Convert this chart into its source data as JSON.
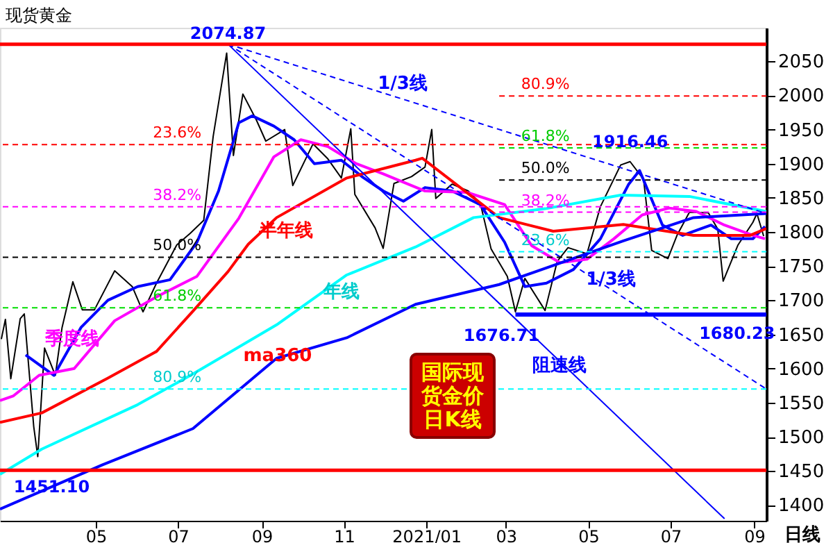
{
  "chart_data": {
    "type": "line",
    "title": "现货黄金",
    "grid": false,
    "xlim": [
      "2020-02-20",
      "2021-09-10"
    ],
    "xticks": [
      {
        "value": "2020-05-01",
        "label": "05"
      },
      {
        "value": "2020-07-01",
        "label": "07"
      },
      {
        "value": "2020-09-01",
        "label": "09"
      },
      {
        "value": "2020-11-01",
        "label": "11"
      },
      {
        "value": "2021-01-01",
        "label": "2021/01"
      },
      {
        "value": "2021-03-01",
        "label": "03"
      },
      {
        "value": "2021-05-01",
        "label": "05"
      },
      {
        "value": "2021-07-01",
        "label": "07"
      },
      {
        "value": "2021-09-01",
        "label": "09"
      }
    ],
    "ylim": [
      1377,
      2099
    ],
    "yticks": [
      1400,
      1450,
      1500,
      1550,
      1600,
      1650,
      1700,
      1750,
      1800,
      1850,
      1900,
      1950,
      2000,
      2050
    ],
    "series": [
      {
        "type": "line",
        "color": "#000000",
        "x": [
          "2020-02-21",
          "2020-02-24",
          "2020-02-28",
          "2020-03-06",
          "2020-03-09",
          "2020-03-16",
          "2020-03-19",
          "2020-03-24",
          "2020-04-01",
          "2020-04-06",
          "2020-04-14",
          "2020-04-21",
          "2020-04-30",
          "2020-05-15",
          "2020-05-28",
          "2020-06-05",
          "2020-06-15",
          "2020-06-30",
          "2020-07-10",
          "2020-07-20",
          "2020-07-27",
          "2020-08-06",
          "2020-08-11",
          "2020-08-18",
          "2020-08-28",
          "2020-09-04",
          "2020-09-18",
          "2020-09-24",
          "2020-10-09",
          "2020-10-20",
          "2020-10-30",
          "2020-11-06",
          "2020-11-09",
          "2020-11-24",
          "2020-11-30",
          "2020-12-08",
          "2020-12-21",
          "2020-12-31",
          "2021-01-05",
          "2021-01-08",
          "2021-01-20",
          "2021-02-01",
          "2021-02-10",
          "2021-02-18",
          "2021-03-02",
          "2021-03-08",
          "2021-03-15",
          "2021-03-30",
          "2021-04-08",
          "2021-04-16",
          "2021-04-30",
          "2021-05-10",
          "2021-05-25",
          "2021-06-01",
          "2021-06-11",
          "2021-06-17",
          "2021-06-29",
          "2021-07-06",
          "2021-07-15",
          "2021-07-29",
          "2021-08-05",
          "2021-08-09",
          "2021-08-20",
          "2021-08-31",
          "2021-09-03",
          "2021-09-08"
        ],
        "values": [
          1643,
          1672,
          1585,
          1673,
          1680,
          1515,
          1471,
          1630,
          1590,
          1660,
          1727,
          1686,
          1686,
          1743,
          1720,
          1683,
          1725,
          1781,
          1798,
          1817,
          1940,
          2062,
          1912,
          2002,
          1964,
          1933,
          1950,
          1868,
          1929,
          1907,
          1879,
          1951,
          1855,
          1806,
          1776,
          1871,
          1881,
          1895,
          1950,
          1849,
          1870,
          1860,
          1842,
          1775,
          1735,
          1683,
          1732,
          1685,
          1757,
          1777,
          1768,
          1837,
          1898,
          1903,
          1877,
          1773,
          1761,
          1796,
          1829,
          1828,
          1804,
          1728,
          1781,
          1814,
          1827,
          1794
        ]
      },
      {
        "type": "line",
        "color": "#0000ff",
        "x": [
          "2020-03-10",
          "2020-03-31",
          "2020-04-20",
          "2020-05-10",
          "2020-06-01",
          "2020-06-25",
          "2020-07-15",
          "2020-07-31",
          "2020-08-15",
          "2020-08-25",
          "2020-09-10",
          "2020-09-25",
          "2020-10-10",
          "2020-10-30",
          "2020-11-15",
          "2020-11-30",
          "2020-12-15",
          "2020-12-31",
          "2021-01-20",
          "2021-02-10",
          "2021-02-28",
          "2021-03-15",
          "2021-03-31",
          "2021-04-20",
          "2021-05-10",
          "2021-05-31",
          "2021-06-08",
          "2021-06-25",
          "2021-07-10",
          "2021-07-31",
          "2021-08-15",
          "2021-08-31",
          "2021-09-09"
        ],
        "values": [
          1620,
          1590,
          1660,
          1700,
          1720,
          1730,
          1785,
          1860,
          1960,
          1970,
          1955,
          1935,
          1900,
          1905,
          1880,
          1860,
          1845,
          1865,
          1860,
          1840,
          1785,
          1720,
          1725,
          1745,
          1790,
          1870,
          1890,
          1810,
          1795,
          1810,
          1790,
          1790,
          1808
        ]
      },
      {
        "type": "line",
        "color": "#ff00ff",
        "x": [
          "2020-02-20",
          "2020-03-01",
          "2020-03-20",
          "2020-04-15",
          "2020-05-15",
          "2020-06-15",
          "2020-07-15",
          "2020-08-15",
          "2020-09-10",
          "2020-09-30",
          "2020-10-20",
          "2020-11-10",
          "2020-11-30",
          "2020-12-31",
          "2021-01-31",
          "2021-02-28",
          "2021-03-20",
          "2021-04-10",
          "2021-04-30",
          "2021-05-20",
          "2021-06-10",
          "2021-06-30",
          "2021-07-20",
          "2021-08-10",
          "2021-08-31",
          "2021-09-09"
        ],
        "values": [
          1553,
          1560,
          1590,
          1600,
          1670,
          1705,
          1735,
          1820,
          1910,
          1935,
          1925,
          1900,
          1885,
          1860,
          1858,
          1840,
          1780,
          1755,
          1760,
          1790,
          1825,
          1835,
          1830,
          1810,
          1795,
          1790
        ]
      },
      {
        "type": "line",
        "color": "#ff0000",
        "x": [
          "2020-02-20",
          "2020-03-22",
          "2020-05-10",
          "2020-06-15",
          "2020-07-12",
          "2020-08-07",
          "2020-08-22",
          "2020-09-12",
          "2020-11-03",
          "2020-12-24",
          "2020-12-29",
          "2021-02-24",
          "2021-04-05",
          "2021-05-27",
          "2021-07-18",
          "2021-08-29",
          "2021-09-10"
        ],
        "values": [
          1521,
          1535,
          1586,
          1625,
          1684,
          1742,
          1782,
          1821,
          1879,
          1905,
          1908,
          1821,
          1801,
          1811,
          1795,
          1795,
          1805
        ]
      },
      {
        "type": "line",
        "color": "#00ffff",
        "x": [
          "2020-02-20",
          "2020-03-22",
          "2020-06-01",
          "2020-07-12",
          "2020-09-12",
          "2020-11-03",
          "2020-12-24",
          "2021-02-05",
          "2021-03-30",
          "2021-05-25",
          "2021-07-15",
          "2021-09-10"
        ],
        "values": [
          1445,
          1482,
          1547,
          1592,
          1664,
          1737,
          1778,
          1821,
          1834,
          1854,
          1852,
          1830
        ]
      },
      {
        "type": "line",
        "color": "#0000ff",
        "x": [
          "2020-02-20",
          "2020-05-06",
          "2020-07-12",
          "2020-09-12",
          "2020-11-03",
          "2020-12-24",
          "2021-02-24",
          "2021-05-27",
          "2021-07-18",
          "2021-09-10"
        ],
        "values": [
          1394,
          1459,
          1512,
          1615,
          1645,
          1694,
          1723,
          1787,
          1821,
          1827
        ]
      },
      {
        "type": "line",
        "color": "#0000ff",
        "x": [
          "2021-03-08",
          "2021-09-10"
        ],
        "values": [
          1679,
          1679
        ]
      },
      {
        "color": "#0000ff",
        "x": [
          "2020-08-07",
          "2021-08-10"
        ],
        "values": [
          2075,
          1380
        ]
      },
      {
        "color": "#0000ff",
        "line_style": "dashed",
        "x": [
          "2020-08-07",
          "2021-09-10"
        ],
        "values": [
          2075,
          1827
        ]
      },
      {
        "color": "#0000ff",
        "line_style": "dashed",
        "x": [
          "2020-08-07",
          "2021-09-10"
        ],
        "values": [
          2075,
          1570
        ]
      },
      {
        "color": "#ff0000",
        "line_style": "dashed",
        "x": [
          "2021-02-24",
          "2021-09-10"
        ],
        "values": [
          1999,
          1999
        ]
      },
      {
        "color": "#00dd00",
        "line_style": "dashed",
        "x": [
          "2021-02-24",
          "2021-09-10"
        ],
        "values": [
          1923,
          1923
        ]
      },
      {
        "color": "#000000",
        "line_style": "dashed",
        "x": [
          "2021-02-24",
          "2021-09-10"
        ],
        "values": [
          1876,
          1876
        ]
      },
      {
        "color": "#ff00ff",
        "line_style": "dashed",
        "x": [
          "2021-02-24",
          "2021-09-10"
        ],
        "values": [
          1829,
          1829
        ]
      },
      {
        "color": "#00ffff",
        "line_style": "dashed",
        "x": [
          "2021-02-24",
          "2021-09-10"
        ],
        "values": [
          1771,
          1771
        ]
      }
    ],
    "ref_lines": [
      {
        "axis": "y",
        "value": 2074.87,
        "color": "#ff0000",
        "line_style": "solid"
      },
      {
        "axis": "y",
        "value": 1451.1,
        "color": "#ff0000",
        "line_style": "solid"
      },
      {
        "axis": "y",
        "value": 1928,
        "color": "#ff0000",
        "line_style": "dashed"
      },
      {
        "axis": "y",
        "value": 1837,
        "color": "#ff00ff",
        "line_style": "dashed"
      },
      {
        "axis": "y",
        "value": 1763,
        "color": "#000000",
        "line_style": "dashed"
      },
      {
        "axis": "y",
        "value": 1689,
        "color": "#00dd00",
        "line_style": "dashed"
      },
      {
        "axis": "y",
        "value": 1570,
        "color": "#00ffff",
        "line_style": "dashed"
      }
    ],
    "annotations": [
      {
        "text": "2074.87",
        "x": "2020-08-07",
        "y": 2074.87
      },
      {
        "text": "1451.10",
        "x": "2020-03-19",
        "y": 1451.1
      },
      {
        "text": "1676.71",
        "x": "2021-03-08",
        "y": 1676.71
      },
      {
        "text": "1680.23",
        "x": "2021-08-09",
        "y": 1680.23
      },
      {
        "text": "1916.46",
        "x": "2021-06-01",
        "y": 1916.46
      },
      {
        "text": "80.9%",
        "x": "2021-03-20",
        "y": 1999
      },
      {
        "text": "61.8%",
        "x": "2021-03-20",
        "y": 1923
      },
      {
        "text": "50.0%",
        "x": "2021-03-20",
        "y": 1876
      },
      {
        "text": "38.2%",
        "x": "2021-03-20",
        "y": 1829
      },
      {
        "text": "23.6%",
        "x": "2021-03-20",
        "y": 1771
      },
      {
        "text": "23.6%",
        "x": "2020-06-20",
        "y": 1928
      },
      {
        "text": "38.2%",
        "x": "2020-06-20",
        "y": 1837
      },
      {
        "text": "50.0%",
        "x": "2020-06-20",
        "y": 1763
      },
      {
        "text": "61.8%",
        "x": "2020-06-20",
        "y": 1689
      },
      {
        "text": "80.9%",
        "x": "2020-06-20",
        "y": 1570
      },
      "季度线",
      "半年线",
      "年线",
      "ma360",
      "1/3线",
      "1/3线",
      "阻速线",
      "国际现货金价日K线",
      "日线"
    ]
  }
}
